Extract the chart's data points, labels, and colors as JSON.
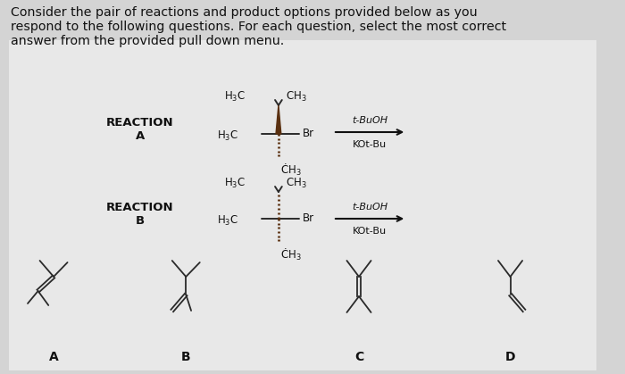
{
  "bg_color": "#d4d4d4",
  "title_text": "Consider the pair of reactions and product options provided below as you\nrespond to the following questions. For each question, select the most correct\nanswer from the provided pull down menu.",
  "title_fontsize": 10.2,
  "reaction_a_label": "REACTION\nA",
  "reaction_b_label": "REACTION\nB",
  "label_a": "A",
  "label_b": "B",
  "label_c": "C",
  "label_d": "D",
  "text_color": "#111111",
  "arrow_color": "#111111",
  "bond_color": "#2a2a2a",
  "wedge_color": "#5a3010",
  "dash_color": "#5a3010",
  "panel_bg": "#e8e8e8"
}
